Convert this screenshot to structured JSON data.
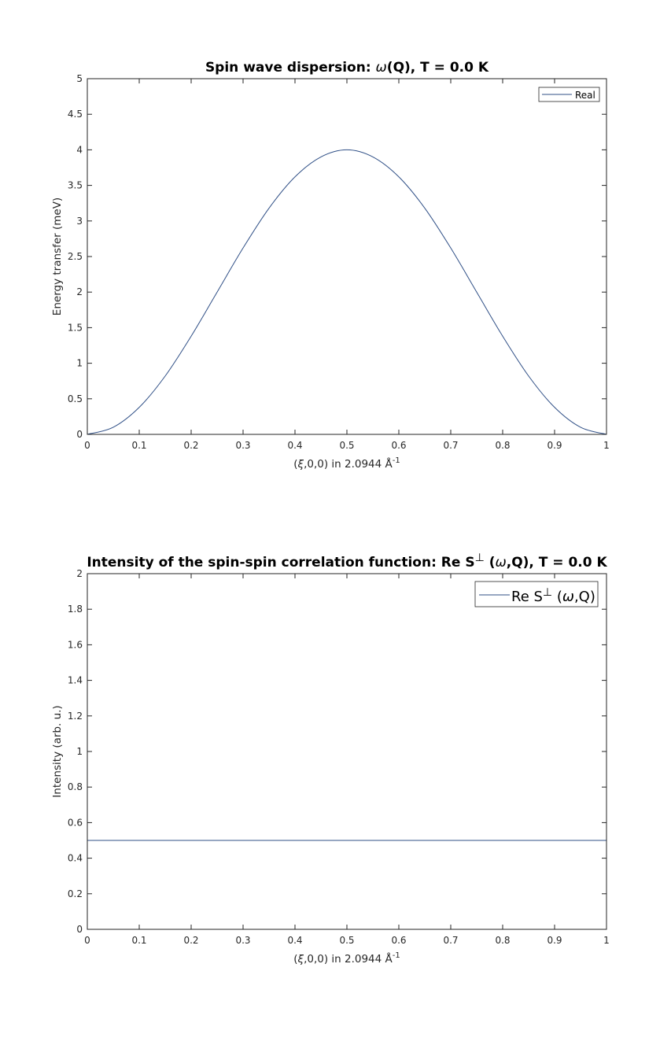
{
  "colors": {
    "series": "#2f4f86",
    "axis": "#262626",
    "background": "#ffffff"
  },
  "chart_data": [
    {
      "type": "line",
      "title_prefix": "Spin wave dispersion: ",
      "title_omega": "ω",
      "title_suffix": "(Q), T =   0.0 K",
      "xlabel_prefix": "(",
      "xlabel_xi": "ξ",
      "xlabel_mid": ",0,0) in 2.0944 Å",
      "xlabel_sup": "-1",
      "ylabel": "Energy transfer (meV)",
      "xlim": [
        0,
        1
      ],
      "ylim": [
        0,
        5
      ],
      "xticks": [
        "0",
        "0.1",
        "0.2",
        "0.3",
        "0.4",
        "0.5",
        "0.6",
        "0.7",
        "0.8",
        "0.9",
        "1"
      ],
      "yticks": [
        "0",
        "0.5",
        "1",
        "1.5",
        "2",
        "2.5",
        "3",
        "3.5",
        "4",
        "4.5",
        "5"
      ],
      "legend": {
        "position": "top-right",
        "label": "Real"
      },
      "series": [
        {
          "name": "Real",
          "x": [
            0,
            0.05,
            0.1,
            0.15,
            0.2,
            0.25,
            0.3,
            0.35,
            0.4,
            0.45,
            0.5,
            0.55,
            0.6,
            0.65,
            0.7,
            0.75,
            0.8,
            0.85,
            0.9,
            0.95,
            1
          ],
          "y": [
            0,
            0.1,
            0.38,
            0.82,
            1.38,
            2.0,
            2.62,
            3.18,
            3.62,
            3.9,
            4.0,
            3.9,
            3.62,
            3.18,
            2.62,
            2.0,
            1.38,
            0.82,
            0.38,
            0.1,
            0
          ]
        }
      ]
    },
    {
      "type": "line",
      "title_prefix": "Intensity of the spin-spin correlation function: Re S",
      "title_perp": "⊥",
      "title_mid": " (",
      "title_omega": "ω",
      "title_suffix": ",Q), T =   0.0 K",
      "xlabel_prefix": "(",
      "xlabel_xi": "ξ",
      "xlabel_mid": ",0,0) in 2.0944 Å",
      "xlabel_sup": "-1",
      "ylabel": "Intensity (arb. u.)",
      "xlim": [
        0,
        1
      ],
      "ylim": [
        0,
        2
      ],
      "xticks": [
        "0",
        "0.1",
        "0.2",
        "0.3",
        "0.4",
        "0.5",
        "0.6",
        "0.7",
        "0.8",
        "0.9",
        "1"
      ],
      "yticks": [
        "0",
        "0.2",
        "0.4",
        "0.6",
        "0.8",
        "1",
        "1.2",
        "1.4",
        "1.6",
        "1.8",
        "2"
      ],
      "legend": {
        "position": "top-right",
        "label_prefix": "Re S",
        "label_perp": "⊥",
        "label_mid": " (",
        "label_omega": "ω",
        "label_suffix": ",Q)"
      },
      "series": [
        {
          "x": [
            0,
            1
          ],
          "y": [
            0.5,
            0.5
          ]
        }
      ]
    }
  ]
}
